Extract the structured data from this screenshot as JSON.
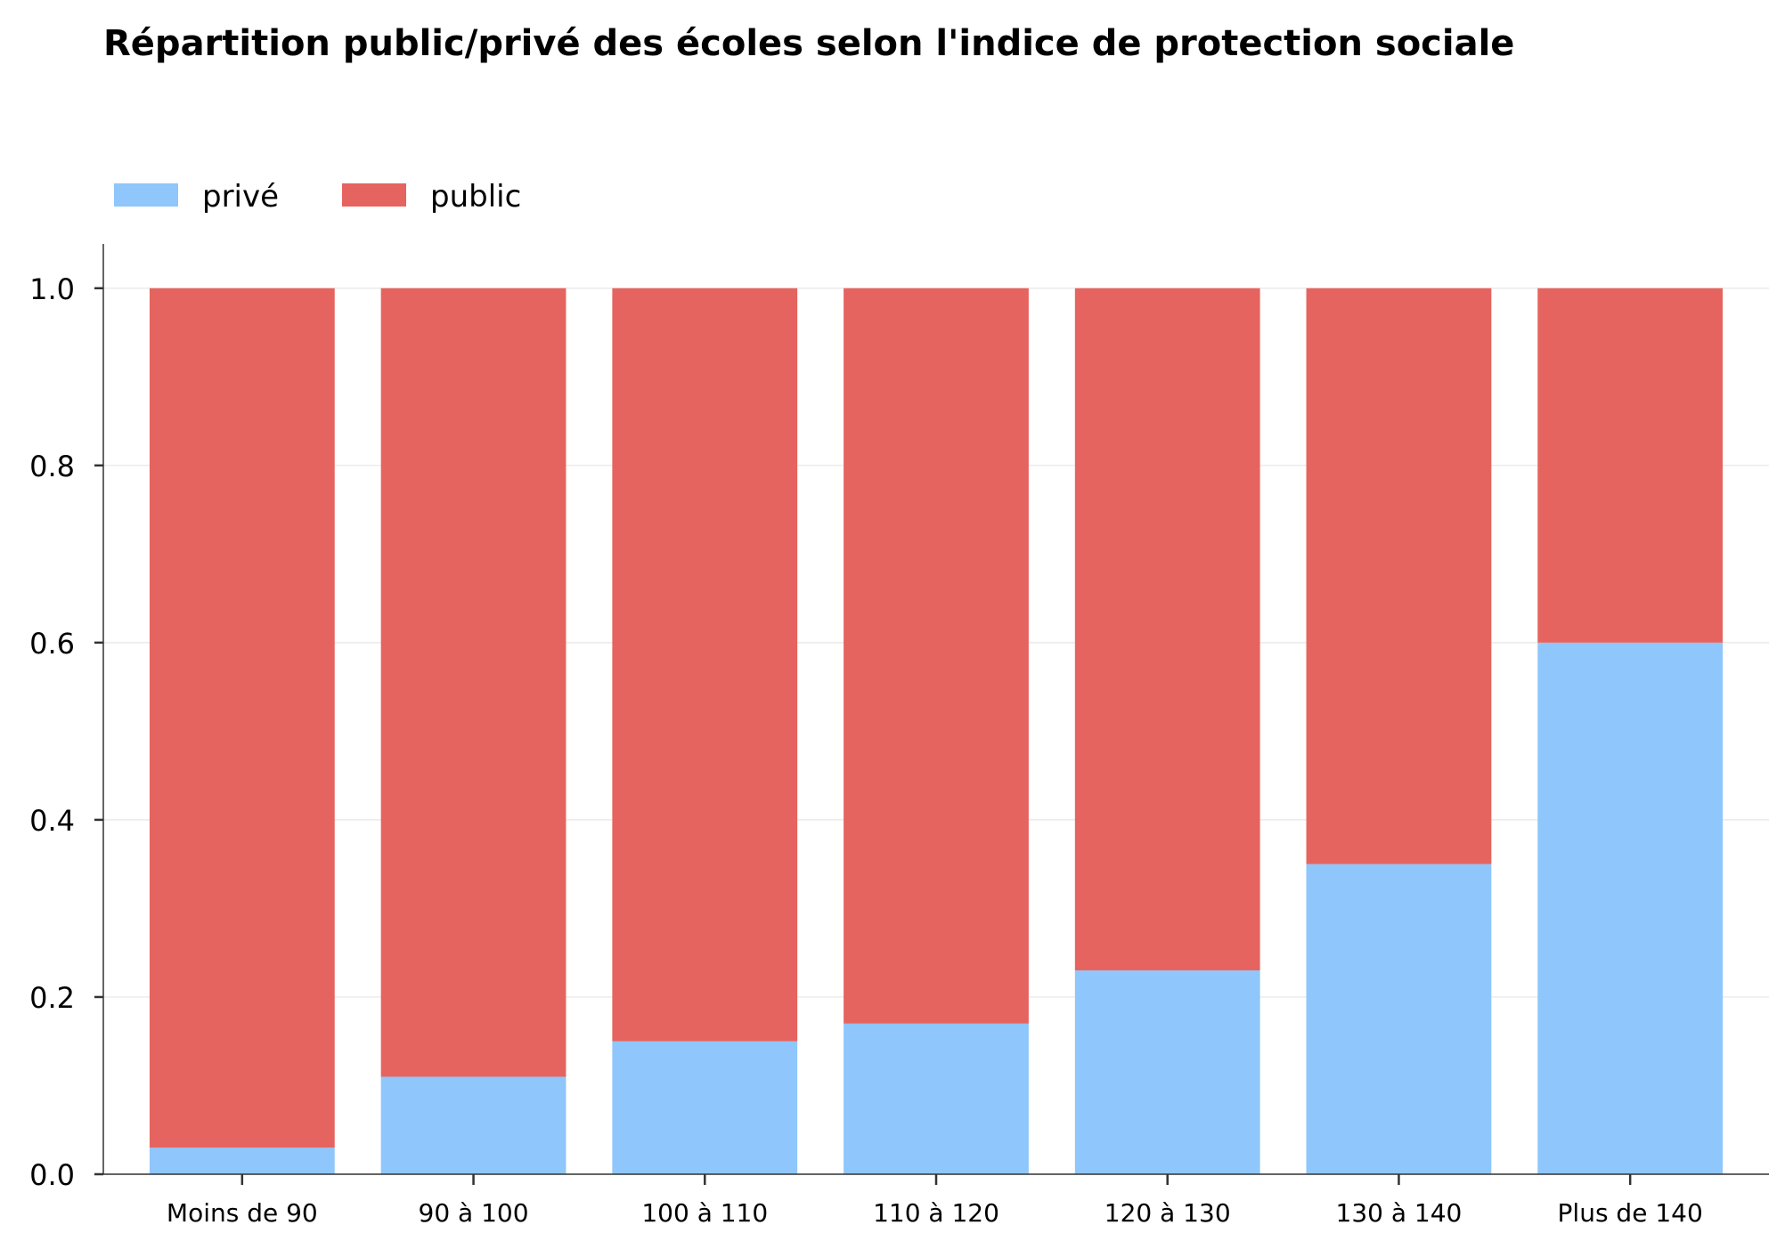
{
  "chart_data": {
    "type": "bar",
    "stacked": true,
    "title": "Répartition public/privé des écoles selon l'indice de protection sociale",
    "xlabel": "",
    "ylabel": "",
    "categories": [
      "Moins de 90",
      "90 à 100",
      "100 à 110",
      "110 à 120",
      "120 à 130",
      "130 à 140",
      "Plus de 140"
    ],
    "series": [
      {
        "name": "privé",
        "color": "#8fc6fb",
        "values": [
          0.03,
          0.11,
          0.15,
          0.17,
          0.23,
          0.35,
          0.6
        ]
      },
      {
        "name": "public",
        "color": "#e6645f",
        "values": [
          0.97,
          0.89,
          0.85,
          0.83,
          0.77,
          0.65,
          0.4
        ]
      }
    ],
    "ylim": [
      0,
      1.05
    ],
    "yticks": [
      "0.0",
      "0.2",
      "0.4",
      "0.6",
      "0.8",
      "1.0"
    ],
    "grid": true,
    "legend": "top-left, horizontal"
  }
}
